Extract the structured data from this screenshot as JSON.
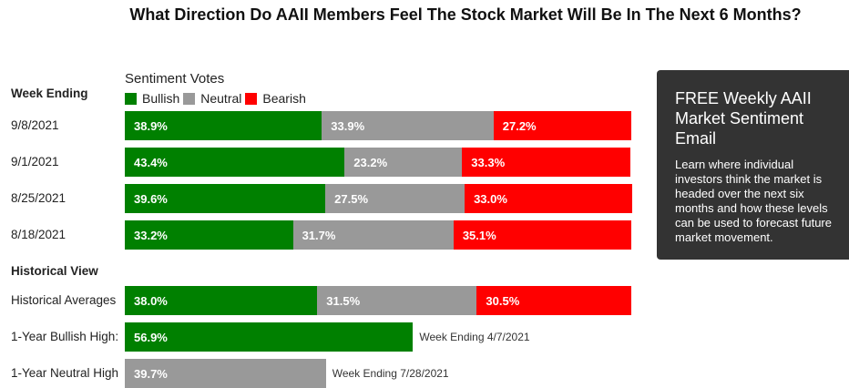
{
  "title": "What Direction Do AAII Members Feel The Stock Market Will Be In The Next 6 Months?",
  "colors": {
    "bullish": "#008000",
    "neutral": "#999999",
    "bearish": "#ff0000",
    "card_bg": "#333333"
  },
  "card": {
    "heading": "FREE Weekly AAII Market Sentiment Email",
    "body": "Learn where individual investors think the market is headed over the next six months and how these levels can be used to forecast future market movement."
  },
  "chart_data": {
    "type": "bar",
    "stacked": true,
    "title": "Sentiment Votes",
    "week_header": "Week Ending",
    "historical_header": "Historical View",
    "legend": [
      "Bullish",
      "Neutral",
      "Bearish"
    ],
    "weeks": [
      {
        "label": "9/8/2021",
        "values": [
          38.9,
          33.9,
          27.2
        ]
      },
      {
        "label": "9/1/2021",
        "values": [
          43.4,
          23.2,
          33.3
        ]
      },
      {
        "label": "8/25/2021",
        "values": [
          39.6,
          27.5,
          33.0
        ]
      },
      {
        "label": "8/18/2021",
        "values": [
          33.2,
          31.7,
          35.1
        ]
      }
    ],
    "historical": [
      {
        "label": "Historical Averages",
        "values": [
          38.0,
          31.5,
          30.5
        ]
      },
      {
        "label": "1-Year Bullish High:",
        "values": [
          56.9,
          null,
          null
        ],
        "note": "Week Ending 4/7/2021"
      },
      {
        "label": "1-Year Neutral High",
        "values": [
          null,
          39.7,
          null
        ],
        "note": "Week Ending 7/28/2021"
      }
    ],
    "xlim": [
      0,
      100
    ]
  }
}
